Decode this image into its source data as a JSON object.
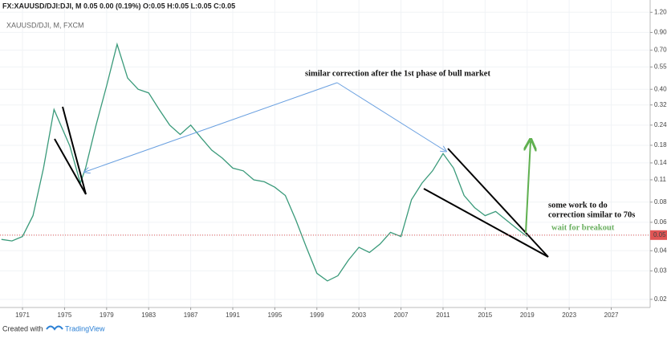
{
  "chart_data": {
    "type": "line",
    "title": "FX:XAUUSD/DJI:DJI, M  0.05 0.00 (0.19%) O:0.05 H:0.05 L:0.05 C:0.05",
    "subtitle": "XAUUSD/DJI, M, FXCM",
    "annotations": [
      "similar  correction after the 1st phase of bull market",
      "some work to do",
      "correction similar to 70s",
      "wait for breakout"
    ],
    "x": [
      1969,
      1970,
      1971,
      1972,
      1973,
      1974,
      1975.5,
      1976.5,
      1977,
      1978,
      1979,
      1980,
      1981,
      1982,
      1983,
      1984,
      1985,
      1986,
      1987,
      1988,
      1989,
      1990,
      1991,
      1992,
      1993,
      1994,
      1995,
      1996,
      1997,
      1998,
      1999,
      2000,
      2001,
      2002,
      2003,
      2004,
      2005,
      2006,
      2007,
      2008,
      2009,
      2010,
      2011,
      2012,
      2013,
      2014,
      2015,
      2016,
      2017,
      2018,
      2019
    ],
    "series": [
      {
        "name": "XAUUSD/DJI",
        "color": "#3a9a7a",
        "values": [
          0.047,
          0.046,
          0.049,
          0.066,
          0.13,
          0.3,
          0.178,
          0.105,
          0.13,
          0.24,
          0.42,
          0.76,
          0.47,
          0.4,
          0.38,
          0.3,
          0.24,
          0.21,
          0.24,
          0.2,
          0.168,
          0.15,
          0.13,
          0.125,
          0.11,
          0.107,
          0.099,
          0.088,
          0.062,
          0.042,
          0.029,
          0.026,
          0.028,
          0.035,
          0.042,
          0.039,
          0.044,
          0.052,
          0.049,
          0.083,
          0.105,
          0.125,
          0.16,
          0.13,
          0.088,
          0.074,
          0.066,
          0.07,
          0.062,
          0.055,
          0.049
        ]
      }
    ],
    "last_price": 0.05,
    "last_price_color": "#e05555",
    "log_scale": true,
    "grid": true,
    "xlim": [
      1968.86,
      2030.7
    ],
    "xticks": [
      1971,
      1975,
      1979,
      1983,
      1987,
      1991,
      1995,
      1999,
      2003,
      2007,
      2011,
      2015,
      2019,
      2023,
      2027
    ],
    "ylim": [
      0.0178,
      1.43
    ],
    "yticks": [
      0.02,
      0.03,
      0.04,
      0.05,
      0.06,
      0.08,
      0.11,
      0.14,
      0.18,
      0.24,
      0.32,
      {
        "value": 0.4,
        "label": "0.40"
      },
      0.55,
      {
        "value": 0.7,
        "label": "0.70"
      },
      {
        "value": 0.9,
        "label": "0.90"
      },
      {
        "value": 1.2,
        "label": "1.20"
      }
    ]
  },
  "footer": {
    "text": "Created with",
    "brand": "TradingView"
  }
}
